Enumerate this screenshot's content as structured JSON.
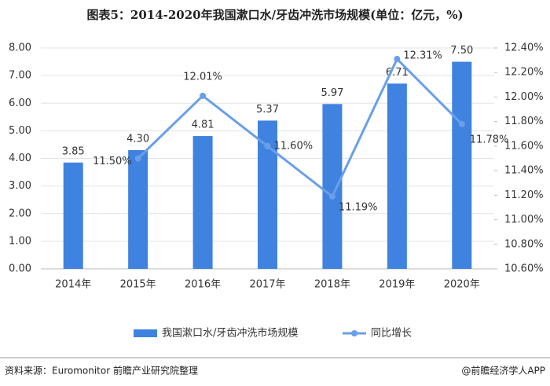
{
  "chart_data": {
    "type": "bar",
    "title": "图表5：2014-2020年我国漱口水/牙齿冲洗市场规模(单位：亿元，%)",
    "categories": [
      "2014年",
      "2015年",
      "2016年",
      "2017年",
      "2018年",
      "2019年",
      "2020年"
    ],
    "series": [
      {
        "name": "我国漱口水/牙齿冲洗市场规模",
        "type": "bar",
        "color": "#3f82e0",
        "values": [
          3.85,
          4.3,
          4.81,
          5.37,
          5.97,
          6.71,
          7.5
        ],
        "value_labels": [
          "3.85",
          "4.30",
          "4.81",
          "5.37",
          "5.97",
          "6.71",
          "7.50"
        ]
      },
      {
        "name": "同比增长",
        "type": "line",
        "axis": "y2",
        "color": "#6a9fe8",
        "values": [
          null,
          11.5,
          12.01,
          11.6,
          11.19,
          12.31,
          11.78
        ],
        "value_labels": [
          null,
          "11.50%",
          "12.01%",
          "11.60%",
          "11.19%",
          "12.31%",
          "11.78%"
        ]
      }
    ],
    "ylim": [
      0,
      8
    ],
    "yticks": [
      {
        "value": 0,
        "label": "0.00"
      },
      {
        "value": 1,
        "label": "1.00"
      },
      {
        "value": 2,
        "label": "2.00"
      },
      {
        "value": 3,
        "label": "3.00"
      },
      {
        "value": 4,
        "label": "4.00"
      },
      {
        "value": 5,
        "label": "5.00"
      },
      {
        "value": 6,
        "label": "6.00"
      },
      {
        "value": 7,
        "label": "7.00"
      },
      {
        "value": 8,
        "label": "8.00"
      }
    ],
    "y2lim": [
      10.6,
      12.4
    ],
    "y2ticks": [
      {
        "value": 10.6,
        "label": "10.60%"
      },
      {
        "value": 10.8,
        "label": "10.80%"
      },
      {
        "value": 11.0,
        "label": "11.00%"
      },
      {
        "value": 11.2,
        "label": "11.20%"
      },
      {
        "value": 11.4,
        "label": "11.40%"
      },
      {
        "value": 11.6,
        "label": "11.60%"
      },
      {
        "value": 11.8,
        "label": "11.80%"
      },
      {
        "value": 12.0,
        "label": "12.00%"
      },
      {
        "value": 12.2,
        "label": "12.20%"
      },
      {
        "value": 12.4,
        "label": "12.40%"
      }
    ],
    "legend": "bottom",
    "source": "资料来源：Euromonitor 前瞻产业研究院整理",
    "credit": "@前瞻经济学人APP"
  }
}
